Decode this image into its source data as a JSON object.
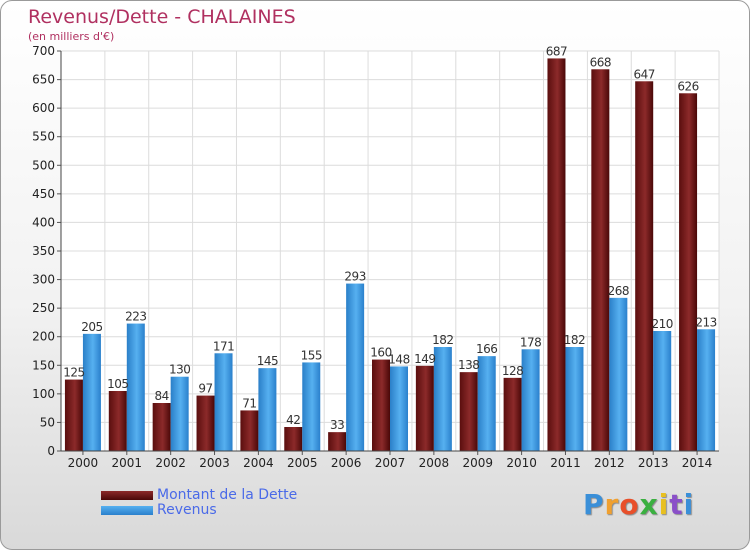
{
  "chart_data": {
    "type": "bar",
    "title": "Revenus/Dette - CHALAINES",
    "subtitle": "(en milliers d'€)",
    "categories": [
      "2000",
      "2001",
      "2002",
      "2003",
      "2004",
      "2005",
      "2006",
      "2007",
      "2008",
      "2009",
      "2010",
      "2011",
      "2012",
      "2013",
      "2014"
    ],
    "series": [
      {
        "name": "Montant de la Dette",
        "color": "#7a1a1a",
        "values": [
          125,
          105,
          84,
          97,
          71,
          42,
          33,
          160,
          149,
          138,
          128,
          687,
          668,
          647,
          626
        ]
      },
      {
        "name": "Revenus",
        "color": "#3a9ae0",
        "values": [
          205,
          223,
          130,
          171,
          145,
          155,
          293,
          148,
          182,
          166,
          178,
          182,
          268,
          210,
          213
        ]
      }
    ],
    "yticks": [
      0,
      50,
      100,
      150,
      200,
      250,
      300,
      350,
      400,
      450,
      500,
      550,
      600,
      650,
      700
    ],
    "ylim": [
      0,
      700
    ],
    "grid": true,
    "legend_position": "bottom-left"
  },
  "logo": {
    "letters": [
      "P",
      "r",
      "o",
      "x",
      "i",
      "t",
      "i"
    ],
    "colors": [
      "#3a8fd8",
      "#f0a030",
      "#e84f2a",
      "#3ab040",
      "#e8c020",
      "#8a50c8",
      "#3a8fd8"
    ]
  }
}
